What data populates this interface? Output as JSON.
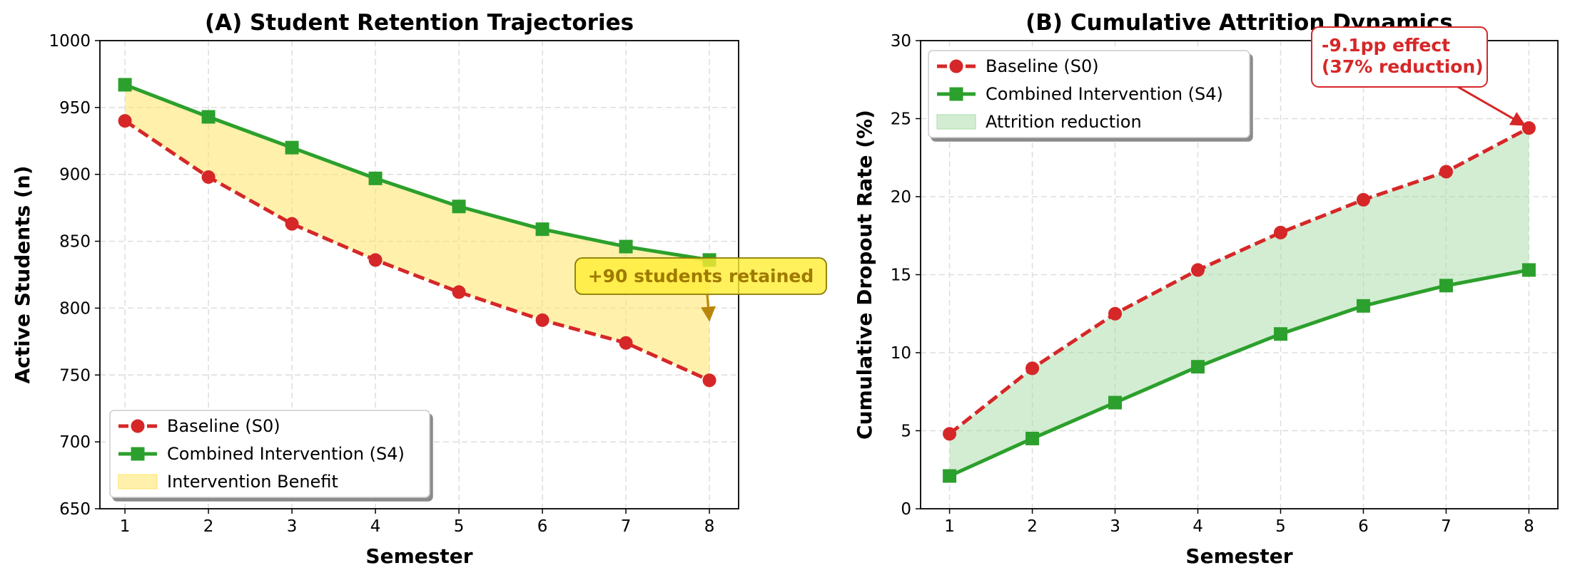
{
  "chart_data": [
    {
      "id": "A",
      "type": "line",
      "title": "(A) Student Retention Trajectories",
      "xlabel": "Semester",
      "ylabel": "Active Students (n)",
      "x": [
        1,
        2,
        3,
        4,
        5,
        6,
        7,
        8
      ],
      "xlim": [
        0.7,
        8.35
      ],
      "ylim": [
        650,
        1000
      ],
      "yticks": [
        650,
        700,
        750,
        800,
        850,
        900,
        950,
        1000
      ],
      "grid": true,
      "legend_position": "lower-left",
      "series": [
        {
          "name": "Baseline (S0)",
          "values": [
            940,
            898,
            863,
            836,
            812,
            791,
            774,
            746
          ],
          "color": "#d62728",
          "style": "dashed",
          "marker": "circle"
        },
        {
          "name": "Combined Intervention (S4)",
          "values": [
            967,
            943,
            920,
            897,
            876,
            859,
            846,
            836
          ],
          "color": "#2ca02c",
          "style": "solid",
          "marker": "square"
        }
      ],
      "fill": {
        "name": "Intervention Benefit",
        "color": "#ffe566"
      },
      "annotation": {
        "text": "+90 students retained",
        "x": 8,
        "y": 791
      }
    },
    {
      "id": "B",
      "type": "line",
      "title": "(B) Cumulative Attrition Dynamics",
      "xlabel": "Semester",
      "ylabel": "Cumulative Dropout Rate (%)",
      "x": [
        1,
        2,
        3,
        4,
        5,
        6,
        7,
        8
      ],
      "xlim": [
        0.65,
        8.35
      ],
      "ylim": [
        0,
        30
      ],
      "yticks": [
        0,
        5,
        10,
        15,
        20,
        25,
        30
      ],
      "grid": true,
      "legend_position": "upper-left",
      "series": [
        {
          "name": "Baseline (S0)",
          "values": [
            4.8,
            9.0,
            12.5,
            15.3,
            17.7,
            19.8,
            21.6,
            24.4
          ],
          "color": "#d62728",
          "style": "dashed",
          "marker": "circle"
        },
        {
          "name": "Combined Intervention (S4)",
          "values": [
            2.1,
            4.5,
            6.8,
            9.1,
            11.2,
            13.0,
            14.3,
            15.3
          ],
          "color": "#2ca02c",
          "style": "solid",
          "marker": "square"
        }
      ],
      "fill": {
        "name": "Attrition reduction",
        "color": "#a8dba8"
      },
      "annotation": {
        "lines": [
          "-9.1pp effect",
          "(37% reduction)"
        ],
        "x": 8,
        "y": 24.4
      }
    }
  ]
}
